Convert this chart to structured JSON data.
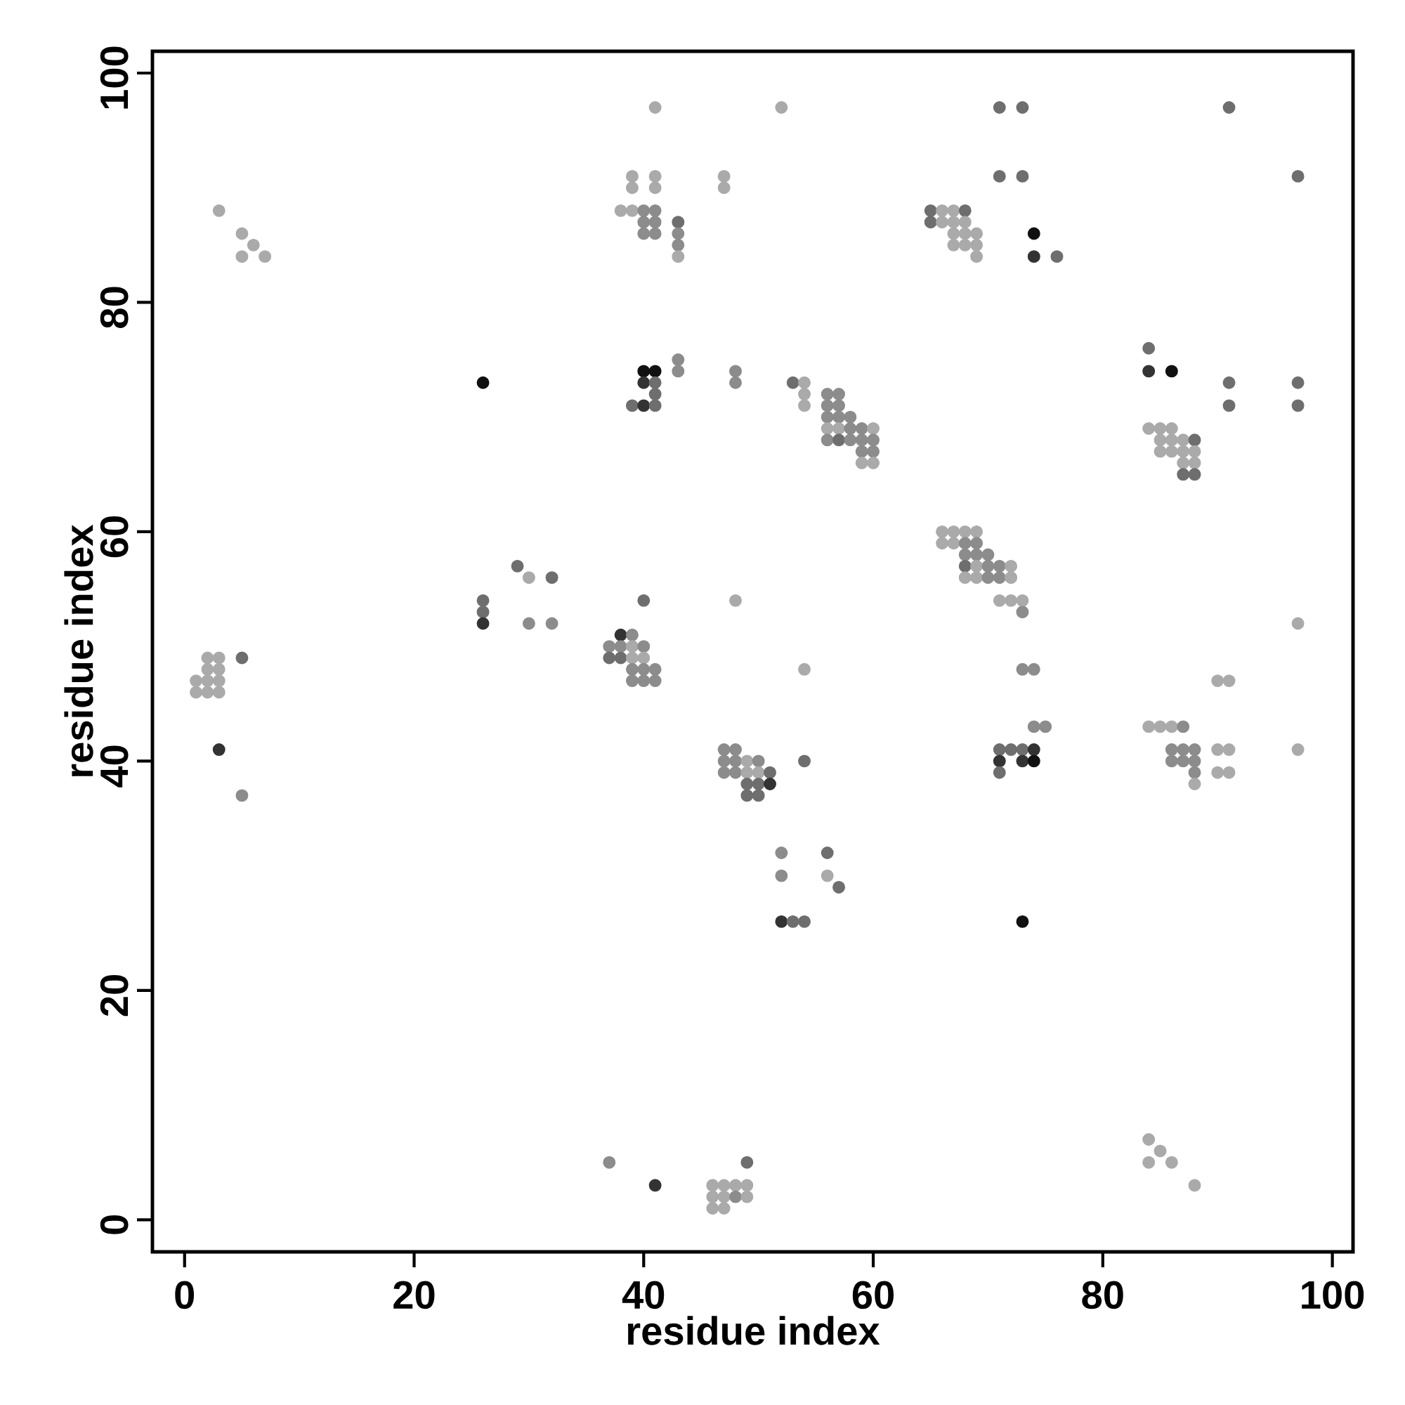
{
  "chart_data": {
    "type": "scatter",
    "xlabel": "residue index",
    "ylabel": "residue index",
    "xlim": [
      -2.8,
      101.8
    ],
    "ylim": [
      -2.8,
      101.9
    ],
    "xticks": [
      0,
      20,
      40,
      60,
      80,
      100
    ],
    "yticks": [
      0,
      20,
      40,
      60,
      80,
      100
    ],
    "marker": "circle",
    "x": [
      3,
      5,
      6,
      5,
      7,
      41,
      52,
      39,
      39,
      41,
      41,
      47,
      47,
      38,
      39,
      40,
      41,
      40,
      41,
      40,
      41,
      43,
      43,
      43,
      43,
      71,
      73,
      91,
      71,
      73,
      97,
      65,
      66,
      67,
      68,
      65,
      66,
      67,
      68,
      67,
      68,
      69,
      67,
      68,
      69,
      69,
      74,
      74,
      76,
      26,
      43,
      43,
      48,
      48,
      40,
      41,
      40,
      41,
      41,
      39,
      40,
      41,
      84,
      84,
      86,
      91,
      91,
      97,
      97,
      53,
      54,
      54,
      54,
      56,
      57,
      56,
      57,
      56,
      57,
      58,
      56,
      57,
      58,
      59,
      60,
      56,
      57,
      58,
      59,
      60,
      59,
      60,
      59,
      60,
      84,
      85,
      86,
      85,
      86,
      87,
      88,
      85,
      86,
      87,
      88,
      87,
      88,
      87,
      88,
      66,
      67,
      68,
      69,
      66,
      67,
      68,
      69,
      68,
      69,
      70,
      68,
      69,
      70,
      71,
      72,
      68,
      69,
      70,
      71,
      72,
      71,
      72,
      73,
      73,
      54,
      73,
      74,
      74,
      75,
      71,
      72,
      73,
      74,
      71,
      73,
      74,
      71,
      84,
      85,
      86,
      87,
      86,
      87,
      88,
      86,
      87,
      88,
      88,
      88,
      90,
      91,
      90,
      91,
      90,
      91,
      97,
      97,
      54,
      29,
      30,
      32,
      26,
      26,
      26,
      30,
      32,
      40,
      48,
      38,
      39,
      37,
      38,
      39,
      40,
      37,
      38,
      39,
      40,
      39,
      40,
      41,
      39,
      40,
      41,
      2,
      3,
      5,
      2,
      3,
      1,
      2,
      3,
      1,
      2,
      3,
      3,
      5,
      47,
      48,
      47,
      48,
      49,
      50,
      47,
      48,
      49,
      50,
      51,
      49,
      50,
      51,
      49,
      50,
      52,
      52,
      56,
      56,
      57,
      52,
      53,
      54,
      73,
      84,
      85,
      84,
      86,
      88,
      37,
      41,
      49,
      46,
      47,
      48,
      49,
      46,
      47,
      48,
      49,
      46,
      47
    ],
    "values": [
      88,
      86,
      85,
      84,
      84,
      97,
      97,
      91,
      90,
      91,
      90,
      91,
      90,
      88,
      88,
      88,
      88,
      87,
      87,
      86,
      86,
      87,
      86,
      85,
      84,
      97,
      97,
      97,
      91,
      91,
      91,
      88,
      88,
      88,
      88,
      87,
      87,
      87,
      87,
      86,
      86,
      86,
      85,
      85,
      85,
      84,
      86,
      84,
      84,
      73,
      75,
      74,
      74,
      73,
      74,
      74,
      73,
      73,
      72,
      71,
      71,
      71,
      76,
      74,
      74,
      73,
      71,
      73,
      71,
      73,
      73,
      72,
      71,
      72,
      72,
      71,
      71,
      70,
      70,
      70,
      69,
      69,
      69,
      69,
      69,
      68,
      68,
      68,
      68,
      68,
      67,
      67,
      66,
      66,
      69,
      69,
      69,
      68,
      68,
      68,
      68,
      67,
      67,
      67,
      67,
      66,
      66,
      65,
      65,
      60,
      60,
      60,
      60,
      59,
      59,
      59,
      59,
      58,
      58,
      58,
      57,
      57,
      57,
      57,
      57,
      56,
      56,
      56,
      56,
      56,
      54,
      54,
      54,
      53,
      48,
      48,
      48,
      43,
      43,
      41,
      41,
      41,
      41,
      40,
      40,
      40,
      39,
      43,
      43,
      43,
      43,
      41,
      41,
      41,
      40,
      40,
      40,
      39,
      38,
      47,
      47,
      41,
      41,
      39,
      39,
      52,
      41,
      40,
      57,
      56,
      56,
      54,
      53,
      52,
      52,
      52,
      54,
      54,
      51,
      51,
      50,
      50,
      50,
      50,
      49,
      49,
      49,
      49,
      48,
      48,
      48,
      47,
      47,
      47,
      49,
      49,
      49,
      48,
      48,
      47,
      47,
      47,
      46,
      46,
      46,
      41,
      37,
      41,
      41,
      40,
      40,
      40,
      40,
      39,
      39,
      39,
      39,
      39,
      38,
      38,
      38,
      37,
      37,
      32,
      30,
      32,
      30,
      29,
      26,
      26,
      26,
      26,
      7,
      6,
      5,
      5,
      3,
      5,
      3,
      5,
      3,
      3,
      3,
      3,
      2,
      2,
      2,
      2,
      1,
      1
    ],
    "colors": [
      "#aaaaaa",
      "#aaaaaa",
      "#aaaaaa",
      "#aaaaaa",
      "#aaaaaa",
      "#aaaaaa",
      "#aaaaaa",
      "#aaaaaa",
      "#aaaaaa",
      "#aaaaaa",
      "#aaaaaa",
      "#aaaaaa",
      "#aaaaaa",
      "#aaaaaa",
      "#aaaaaa",
      "#8c8c8c",
      "#8c8c8c",
      "#8c8c8c",
      "#8c8c8c",
      "#8c8c8c",
      "#8c8c8c",
      "#6e6e6e",
      "#8c8c8c",
      "#8c8c8c",
      "#aaaaaa",
      "#6e6e6e",
      "#6e6e6e",
      "#6e6e6e",
      "#6e6e6e",
      "#6e6e6e",
      "#6e6e6e",
      "#6e6e6e",
      "#aaaaaa",
      "#aaaaaa",
      "#6e6e6e",
      "#6e6e6e",
      "#aaaaaa",
      "#aaaaaa",
      "#aaaaaa",
      "#aaaaaa",
      "#aaaaaa",
      "#aaaaaa",
      "#aaaaaa",
      "#aaaaaa",
      "#aaaaaa",
      "#aaaaaa",
      "#111111",
      "#333333",
      "#6e6e6e",
      "#111111",
      "#8c8c8c",
      "#8c8c8c",
      "#8c8c8c",
      "#8c8c8c",
      "#111111",
      "#111111",
      "#333333",
      "#6e6e6e",
      "#6e6e6e",
      "#6e6e6e",
      "#333333",
      "#6e6e6e",
      "#6e6e6e",
      "#333333",
      "#111111",
      "#6e6e6e",
      "#6e6e6e",
      "#6e6e6e",
      "#6e6e6e",
      "#6e6e6e",
      "#aaaaaa",
      "#aaaaaa",
      "#aaaaaa",
      "#8c8c8c",
      "#8c8c8c",
      "#8c8c8c",
      "#8c8c8c",
      "#8c8c8c",
      "#8c8c8c",
      "#8c8c8c",
      "#aaaaaa",
      "#aaaaaa",
      "#8c8c8c",
      "#8c8c8c",
      "#aaaaaa",
      "#8c8c8c",
      "#6e6e6e",
      "#8c8c8c",
      "#8c8c8c",
      "#8c8c8c",
      "#8c8c8c",
      "#8c8c8c",
      "#aaaaaa",
      "#aaaaaa",
      "#aaaaaa",
      "#aaaaaa",
      "#aaaaaa",
      "#aaaaaa",
      "#aaaaaa",
      "#aaaaaa",
      "#6e6e6e",
      "#aaaaaa",
      "#aaaaaa",
      "#aaaaaa",
      "#aaaaaa",
      "#aaaaaa",
      "#aaaaaa",
      "#6e6e6e",
      "#6e6e6e",
      "#aaaaaa",
      "#aaaaaa",
      "#aaaaaa",
      "#aaaaaa",
      "#aaaaaa",
      "#aaaaaa",
      "#8c8c8c",
      "#8c8c8c",
      "#8c8c8c",
      "#8c8c8c",
      "#8c8c8c",
      "#6e6e6e",
      "#aaaaaa",
      "#8c8c8c",
      "#8c8c8c",
      "#aaaaaa",
      "#aaaaaa",
      "#aaaaaa",
      "#8c8c8c",
      "#8c8c8c",
      "#aaaaaa",
      "#aaaaaa",
      "#aaaaaa",
      "#aaaaaa",
      "#8c8c8c",
      "#aaaaaa",
      "#8c8c8c",
      "#8c8c8c",
      "#8c8c8c",
      "#8c8c8c",
      "#6e6e6e",
      "#6e6e6e",
      "#6e6e6e",
      "#333333",
      "#333333",
      "#333333",
      "#111111",
      "#6e6e6e",
      "#aaaaaa",
      "#aaaaaa",
      "#aaaaaa",
      "#8c8c8c",
      "#8c8c8c",
      "#8c8c8c",
      "#8c8c8c",
      "#8c8c8c",
      "#8c8c8c",
      "#8c8c8c",
      "#8c8c8c",
      "#aaaaaa",
      "#aaaaaa",
      "#aaaaaa",
      "#aaaaaa",
      "#aaaaaa",
      "#aaaaaa",
      "#aaaaaa",
      "#aaaaaa",
      "#aaaaaa",
      "#6e6e6e",
      "#6e6e6e",
      "#aaaaaa",
      "#6e6e6e",
      "#6e6e6e",
      "#6e6e6e",
      "#333333",
      "#8c8c8c",
      "#8c8c8c",
      "#6e6e6e",
      "#aaaaaa",
      "#333333",
      "#8c8c8c",
      "#8c8c8c",
      "#8c8c8c",
      "#aaaaaa",
      "#8c8c8c",
      "#6e6e6e",
      "#6e6e6e",
      "#aaaaaa",
      "#aaaaaa",
      "#8c8c8c",
      "#8c8c8c",
      "#8c8c8c",
      "#8c8c8c",
      "#8c8c8c",
      "#8c8c8c",
      "#aaaaaa",
      "#aaaaaa",
      "#6e6e6e",
      "#aaaaaa",
      "#aaaaaa",
      "#aaaaaa",
      "#aaaaaa",
      "#aaaaaa",
      "#aaaaaa",
      "#aaaaaa",
      "#aaaaaa",
      "#333333",
      "#8c8c8c",
      "#8c8c8c",
      "#8c8c8c",
      "#8c8c8c",
      "#8c8c8c",
      "#aaaaaa",
      "#8c8c8c",
      "#8c8c8c",
      "#8c8c8c",
      "#aaaaaa",
      "#aaaaaa",
      "#6e6e6e",
      "#6e6e6e",
      "#6e6e6e",
      "#333333",
      "#6e6e6e",
      "#6e6e6e",
      "#8c8c8c",
      "#8c8c8c",
      "#6e6e6e",
      "#aaaaaa",
      "#6e6e6e",
      "#333333",
      "#6e6e6e",
      "#6e6e6e",
      "#111111",
      "#aaaaaa",
      "#aaaaaa",
      "#aaaaaa",
      "#aaaaaa",
      "#aaaaaa",
      "#8c8c8c",
      "#333333",
      "#6e6e6e",
      "#aaaaaa",
      "#aaaaaa",
      "#aaaaaa",
      "#aaaaaa",
      "#aaaaaa",
      "#aaaaaa",
      "#8c8c8c",
      "#aaaaaa",
      "#aaaaaa",
      "#aaaaaa"
    ]
  }
}
